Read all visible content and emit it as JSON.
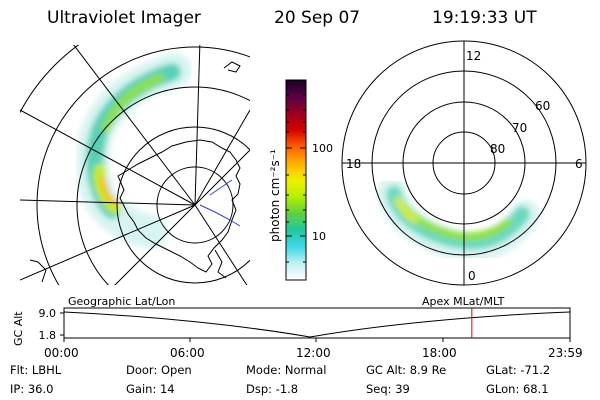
{
  "header": {
    "instrument": "Ultraviolet Imager",
    "date": "20 Sep 07",
    "time": "19:19:33 UT"
  },
  "colorbar": {
    "unit_label": "photon cm⁻²s⁻¹",
    "ticks": [
      "100",
      "10"
    ],
    "colors": [
      "#1a0020",
      "#5a0048",
      "#9a0020",
      "#d40000",
      "#ff6000",
      "#ffb000",
      "#f0f000",
      "#b8ee00",
      "#60d040",
      "#20c8a0",
      "#40d8e8",
      "#c0f0f4",
      "#ffffff"
    ]
  },
  "geo_map": {
    "label": "Geographic Lat/Lon"
  },
  "mag_map": {
    "label": "Apex MLat/MLT",
    "mlt_labels": {
      "top": "12",
      "left": "18",
      "right": "6",
      "bottom": "0"
    },
    "lat_labels": [
      "60",
      "70",
      "80"
    ]
  },
  "timeline": {
    "axis_label": "GC Alt",
    "y_ticks": [
      "9.0",
      "1.8"
    ],
    "x_ticks": [
      "00:00",
      "06:00",
      "12:00",
      "18:00",
      "23:59"
    ],
    "marker_time_hours": 19.33,
    "marker_color": "#e00000"
  },
  "info": {
    "flt": "Flt: LBHL",
    "ip": "IP: 36.0",
    "door": "Door: Open",
    "gain": "Gain: 14",
    "mode": "Mode: Normal",
    "dsp": "Dsp:   -1.8",
    "gc_alt": "GC Alt: 8.9 Re",
    "seq": "Seq: 39",
    "glat": "GLat: -71.2",
    "glon": "GLon:  68.1"
  }
}
